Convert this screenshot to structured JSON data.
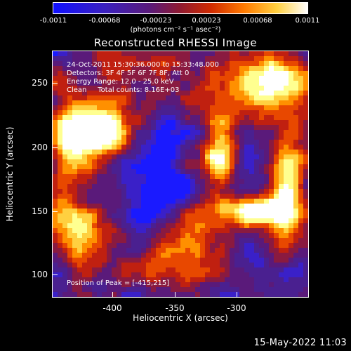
{
  "colorbar": {
    "tick_labels": [
      "-0.0011",
      "-0.00068",
      "-0.00023",
      "0.00023",
      "0.00068",
      "0.0011"
    ],
    "units": "(photons cm⁻² s⁻¹ asec⁻²)"
  },
  "title": "Reconstructed RHESSI Image",
  "annotations": {
    "time_range": "24-Oct-2011 15:30:36.000 to 15:33:48.000",
    "detectors": "Detectors: 3F 4F 5F 6F 7F 8F, Att 0",
    "energy": "Energy Range: 12.0 - 25.0 keV",
    "clean": "Clean     Total counts: 8.16E+03",
    "peak": "Position of Peak = [-415,215]"
  },
  "axes": {
    "xlabel": "Heliocentric X (arcsec)",
    "ylabel": "Heliocentric Y (arcsec)",
    "xticks": [
      "-400",
      "-350",
      "-300"
    ],
    "yticks": [
      "250",
      "200",
      "150",
      "100"
    ],
    "xlim": [
      -445,
      -275
    ],
    "ylim": [
      85,
      272
    ]
  },
  "colors": {
    "colormap": [
      "#1a1aff",
      "#3a20c8",
      "#4a2090",
      "#5a1a7a",
      "#8a1a40",
      "#c02010",
      "#e84800",
      "#ff9000",
      "#ffd040",
      "#ffff90",
      "#ffffff"
    ]
  },
  "timestamp": "15-May-2022 11:03"
}
